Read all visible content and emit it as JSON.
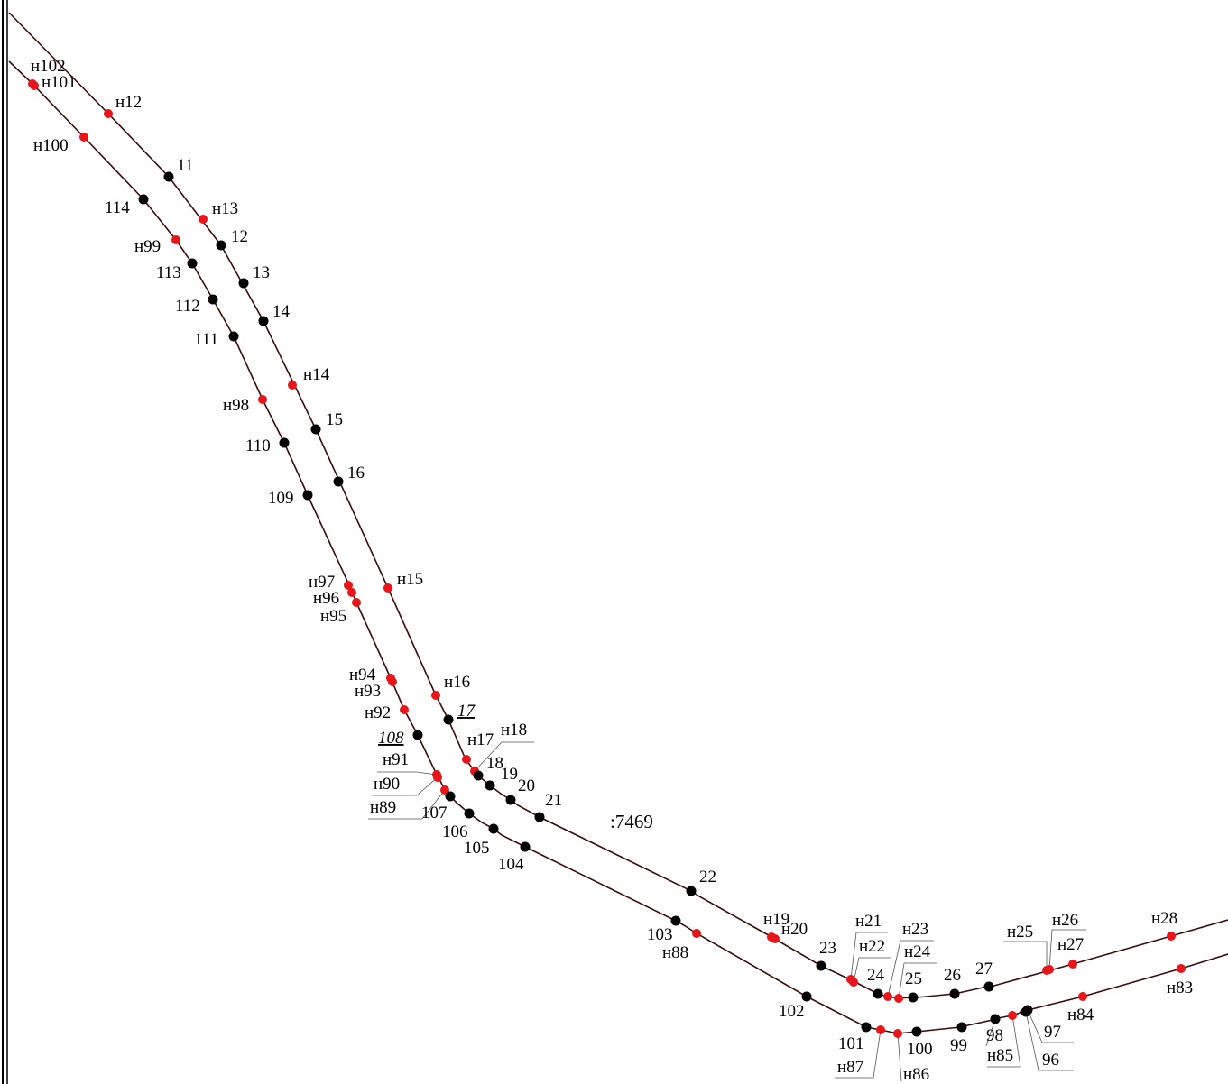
{
  "parcel_label": ":7469",
  "colors": {
    "existing_point": "#000000",
    "new_point": "#e8161b",
    "boundary_line": "#3a0d0d",
    "leader_line": "#555555",
    "frame": "#000000"
  },
  "points": [
    {
      "id": "p1",
      "label": "н102"
    },
    {
      "id": "p2",
      "label": "н101"
    },
    {
      "id": "p3",
      "label": "н12"
    },
    {
      "id": "p4",
      "label": "н100"
    },
    {
      "id": "p5",
      "label": "11"
    },
    {
      "id": "p6",
      "label": "114"
    },
    {
      "id": "p7",
      "label": "н13"
    },
    {
      "id": "p8",
      "label": "12"
    },
    {
      "id": "p9",
      "label": "н99"
    },
    {
      "id": "p10",
      "label": "13"
    },
    {
      "id": "p11",
      "label": "113"
    },
    {
      "id": "p12",
      "label": "112"
    },
    {
      "id": "p13",
      "label": "14"
    },
    {
      "id": "p14",
      "label": "111"
    },
    {
      "id": "p15",
      "label": "н14"
    },
    {
      "id": "p16",
      "label": "н98"
    },
    {
      "id": "p17",
      "label": "15"
    },
    {
      "id": "p18",
      "label": "110"
    },
    {
      "id": "p19",
      "label": "16"
    },
    {
      "id": "p20",
      "label": "109"
    },
    {
      "id": "p21",
      "label": "н97"
    },
    {
      "id": "p22",
      "label": "н15"
    },
    {
      "id": "p23",
      "label": "н96"
    },
    {
      "id": "p24",
      "label": "н95"
    },
    {
      "id": "p25",
      "label": "н94"
    },
    {
      "id": "p26",
      "label": "н93"
    },
    {
      "id": "p27",
      "label": "н16"
    },
    {
      "id": "p28",
      "label": "17"
    },
    {
      "id": "p29",
      "label": "н92"
    },
    {
      "id": "p30",
      "label": "108"
    },
    {
      "id": "p31",
      "label": "н18"
    },
    {
      "id": "p32",
      "label": "н17"
    },
    {
      "id": "p33",
      "label": "н91"
    },
    {
      "id": "p34",
      "label": "18"
    },
    {
      "id": "p35",
      "label": "19"
    },
    {
      "id": "p36",
      "label": "20"
    },
    {
      "id": "p37",
      "label": "н90"
    },
    {
      "id": "p38",
      "label": "21"
    },
    {
      "id": "p39",
      "label": "н89"
    },
    {
      "id": "p40",
      "label": "107"
    },
    {
      "id": "p41",
      "label": "106"
    },
    {
      "id": "p42",
      "label": "105"
    },
    {
      "id": "p43",
      "label": "104"
    },
    {
      "id": "p44",
      "label": "22"
    },
    {
      "id": "p45",
      "label": "103"
    },
    {
      "id": "p46",
      "label": "н88"
    },
    {
      "id": "p47",
      "label": "н19"
    },
    {
      "id": "p48",
      "label": "н20"
    },
    {
      "id": "p49",
      "label": "н21"
    },
    {
      "id": "p50",
      "label": "н23"
    },
    {
      "id": "p51",
      "label": "н22"
    },
    {
      "id": "p52",
      "label": "н24"
    },
    {
      "id": "p53",
      "label": "23"
    },
    {
      "id": "p54",
      "label": "н25"
    },
    {
      "id": "p55",
      "label": "н26"
    },
    {
      "id": "p56",
      "label": "н27"
    },
    {
      "id": "p57",
      "label": "н28"
    },
    {
      "id": "p58",
      "label": "24"
    },
    {
      "id": "p59",
      "label": "25"
    },
    {
      "id": "p60",
      "label": "26"
    },
    {
      "id": "p61",
      "label": "27"
    },
    {
      "id": "p62",
      "label": "н83"
    },
    {
      "id": "p63",
      "label": "102"
    },
    {
      "id": "p64",
      "label": "н84"
    },
    {
      "id": "p65",
      "label": "101"
    },
    {
      "id": "p66",
      "label": "100"
    },
    {
      "id": "p67",
      "label": "99"
    },
    {
      "id": "p68",
      "label": "98"
    },
    {
      "id": "p69",
      "label": "97"
    },
    {
      "id": "p70",
      "label": "н85"
    },
    {
      "id": "p71",
      "label": "96"
    },
    {
      "id": "p72",
      "label": "н87"
    },
    {
      "id": "p73",
      "label": "н86"
    }
  ]
}
